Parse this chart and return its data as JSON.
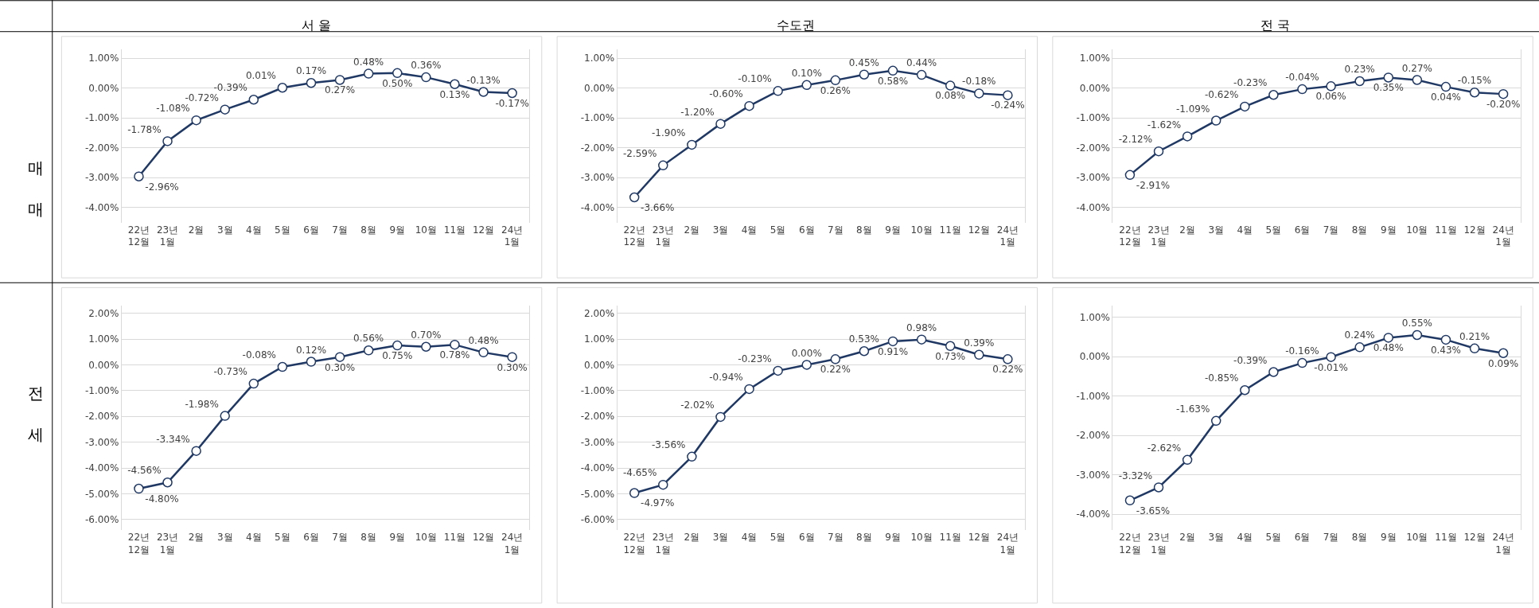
{
  "chart_data": [
    {
      "type": "line",
      "title": "서 울",
      "ylabel": "매 매",
      "categories": [
        "22년\n12월",
        "23년\n1월",
        "2월",
        "3월",
        "4월",
        "5월",
        "6월",
        "7월",
        "8월",
        "9월",
        "10월",
        "11월",
        "12월",
        "24년\n1월"
      ],
      "series": [
        {
          "color": "#1f3864",
          "values": [
            -2.96,
            -1.78,
            -1.08,
            -0.72,
            -0.39,
            0.01,
            0.17,
            0.27,
            0.48,
            0.5,
            0.36,
            0.13,
            -0.13,
            -0.17
          ],
          "value_labels": [
            "-2.96%",
            "-1.78%",
            "-1.08%",
            "-0.72%",
            "-0.39%",
            "0.01%",
            "0.17%",
            "0.27%",
            "0.48%",
            "0.50%",
            "0.36%",
            "0.13%",
            "-0.13%",
            "-0.17%"
          ]
        }
      ],
      "ylim": [
        -4.5,
        1.3
      ],
      "yticks": [
        {
          "value": -4,
          "label": "-4.00%"
        },
        {
          "value": -3,
          "label": "-3.00%"
        },
        {
          "value": -2,
          "label": "-2.00%"
        },
        {
          "value": -1,
          "label": "-1.00%"
        },
        {
          "value": 0,
          "label": "0.00%"
        },
        {
          "value": 1,
          "label": "1.00%"
        }
      ],
      "grid": "y",
      "marker": "circle"
    },
    {
      "type": "line",
      "title": "수도권",
      "categories": [
        "22년\n12월",
        "23년\n1월",
        "2월",
        "3월",
        "4월",
        "5월",
        "6월",
        "7월",
        "8월",
        "9월",
        "10월",
        "11월",
        "12월",
        "24년\n1월"
      ],
      "series": [
        {
          "color": "#1f3864",
          "values": [
            -3.66,
            -2.59,
            -1.9,
            -1.2,
            -0.6,
            -0.1,
            0.1,
            0.26,
            0.45,
            0.58,
            0.44,
            0.08,
            -0.18,
            -0.24
          ],
          "value_labels": [
            "-3.66%",
            "-2.59%",
            "-1.90%",
            "-1.20%",
            "-0.60%",
            "-0.10%",
            "0.10%",
            "0.26%",
            "0.45%",
            "0.58%",
            "0.44%",
            "0.08%",
            "-0.18%",
            "-0.24%"
          ]
        }
      ],
      "ylim": [
        -4.5,
        1.3
      ],
      "yticks": [
        {
          "value": -4,
          "label": "-4.00%"
        },
        {
          "value": -3,
          "label": "-3.00%"
        },
        {
          "value": -2,
          "label": "-2.00%"
        },
        {
          "value": -1,
          "label": "-1.00%"
        },
        {
          "value": 0,
          "label": "0.00%"
        },
        {
          "value": 1,
          "label": "1.00%"
        }
      ],
      "grid": "y",
      "marker": "circle"
    },
    {
      "type": "line",
      "title": "전 국",
      "categories": [
        "22년\n12월",
        "23년\n1월",
        "2월",
        "3월",
        "4월",
        "5월",
        "6월",
        "7월",
        "8월",
        "9월",
        "10월",
        "11월",
        "12월",
        "24년\n1월"
      ],
      "series": [
        {
          "color": "#1f3864",
          "values": [
            -2.91,
            -2.12,
            -1.62,
            -1.09,
            -0.62,
            -0.23,
            -0.04,
            0.06,
            0.23,
            0.35,
            0.27,
            0.04,
            -0.15,
            -0.2
          ],
          "value_labels": [
            "-2.91%",
            "-2.12%",
            "-1.62%",
            "-1.09%",
            "-0.62%",
            "-0.23%",
            "-0.04%",
            "0.06%",
            "0.23%",
            "0.35%",
            "0.27%",
            "0.04%",
            "-0.15%",
            "-0.20%"
          ]
        }
      ],
      "ylim": [
        -4.5,
        1.3
      ],
      "yticks": [
        {
          "value": -4,
          "label": "-4.00%"
        },
        {
          "value": -3,
          "label": "-3.00%"
        },
        {
          "value": -2,
          "label": "-2.00%"
        },
        {
          "value": -1,
          "label": "-1.00%"
        },
        {
          "value": 0,
          "label": "0.00%"
        },
        {
          "value": 1,
          "label": "1.00%"
        }
      ],
      "grid": "y",
      "marker": "circle"
    },
    {
      "type": "line",
      "ylabel": "전 세",
      "categories": [
        "22년\n12월",
        "23년\n1월",
        "2월",
        "3월",
        "4월",
        "5월",
        "6월",
        "7월",
        "8월",
        "9월",
        "10월",
        "11월",
        "12월",
        "24년\n1월"
      ],
      "series": [
        {
          "color": "#1f3864",
          "values": [
            -4.8,
            -4.56,
            -3.34,
            -1.98,
            -0.73,
            -0.08,
            0.12,
            0.3,
            0.56,
            0.75,
            0.7,
            0.78,
            0.48,
            0.3
          ],
          "value_labels": [
            "-4.80%",
            "-4.56%",
            "-3.34%",
            "-1.98%",
            "-0.73%",
            "-0.08%",
            "0.12%",
            "0.30%",
            "0.56%",
            "0.75%",
            "0.70%",
            "0.78%",
            "0.48%",
            "0.30%"
          ]
        }
      ],
      "ylim": [
        -6.4,
        2.3
      ],
      "yticks": [
        {
          "value": -6,
          "label": "-6.00%"
        },
        {
          "value": -5,
          "label": "-5.00%"
        },
        {
          "value": -4,
          "label": "-4.00%"
        },
        {
          "value": -3,
          "label": "-3.00%"
        },
        {
          "value": -2,
          "label": "-2.00%"
        },
        {
          "value": -1,
          "label": "-1.00%"
        },
        {
          "value": 0,
          "label": "0.00%"
        },
        {
          "value": 1,
          "label": "1.00%"
        },
        {
          "value": 2,
          "label": "2.00%"
        }
      ],
      "grid": "y",
      "marker": "circle"
    },
    {
      "type": "line",
      "categories": [
        "22년\n12월",
        "23년\n1월",
        "2월",
        "3월",
        "4월",
        "5월",
        "6월",
        "7월",
        "8월",
        "9월",
        "10월",
        "11월",
        "12월",
        "24년\n1월"
      ],
      "series": [
        {
          "color": "#1f3864",
          "values": [
            -4.97,
            -4.65,
            -3.56,
            -2.02,
            -0.94,
            -0.23,
            0.0,
            0.22,
            0.53,
            0.91,
            0.98,
            0.73,
            0.39,
            0.22
          ],
          "value_labels": [
            "-4.97%",
            "-4.65%",
            "-3.56%",
            "-2.02%",
            "-0.94%",
            "-0.23%",
            "0.00%",
            "0.22%",
            "0.53%",
            "0.91%",
            "0.98%",
            "0.73%",
            "0.39%",
            "0.22%"
          ]
        }
      ],
      "ylim": [
        -6.4,
        2.3
      ],
      "yticks": [
        {
          "value": -6,
          "label": "-6.00%"
        },
        {
          "value": -5,
          "label": "-5.00%"
        },
        {
          "value": -4,
          "label": "-4.00%"
        },
        {
          "value": -3,
          "label": "-3.00%"
        },
        {
          "value": -2,
          "label": "-2.00%"
        },
        {
          "value": -1,
          "label": "-1.00%"
        },
        {
          "value": 0,
          "label": "0.00%"
        },
        {
          "value": 1,
          "label": "1.00%"
        },
        {
          "value": 2,
          "label": "2.00%"
        }
      ],
      "grid": "y",
      "marker": "circle"
    },
    {
      "type": "line",
      "categories": [
        "22년\n12월",
        "23년\n1월",
        "2월",
        "3월",
        "4월",
        "5월",
        "6월",
        "7월",
        "8월",
        "9월",
        "10월",
        "11월",
        "12월",
        "24년\n1월"
      ],
      "series": [
        {
          "color": "#1f3864",
          "values": [
            -3.65,
            -3.32,
            -2.62,
            -1.63,
            -0.85,
            -0.39,
            -0.16,
            -0.01,
            0.24,
            0.48,
            0.55,
            0.43,
            0.21,
            0.09
          ],
          "value_labels": [
            "-3.65%",
            "-3.32%",
            "-2.62%",
            "-1.63%",
            "-0.85%",
            "-0.39%",
            "-0.16%",
            "-0.01%",
            "0.24%",
            "0.48%",
            "0.55%",
            "0.43%",
            "0.21%",
            "0.09%"
          ]
        }
      ],
      "ylim": [
        -4.4,
        1.3
      ],
      "yticks": [
        {
          "value": -4,
          "label": "-4.00%"
        },
        {
          "value": -3,
          "label": "-3.00%"
        },
        {
          "value": -2,
          "label": "-2.00%"
        },
        {
          "value": -1,
          "label": "-1.00%"
        },
        {
          "value": 0,
          "label": "0.00%"
        },
        {
          "value": 1,
          "label": "1.00%"
        }
      ],
      "grid": "y",
      "marker": "circle"
    }
  ]
}
